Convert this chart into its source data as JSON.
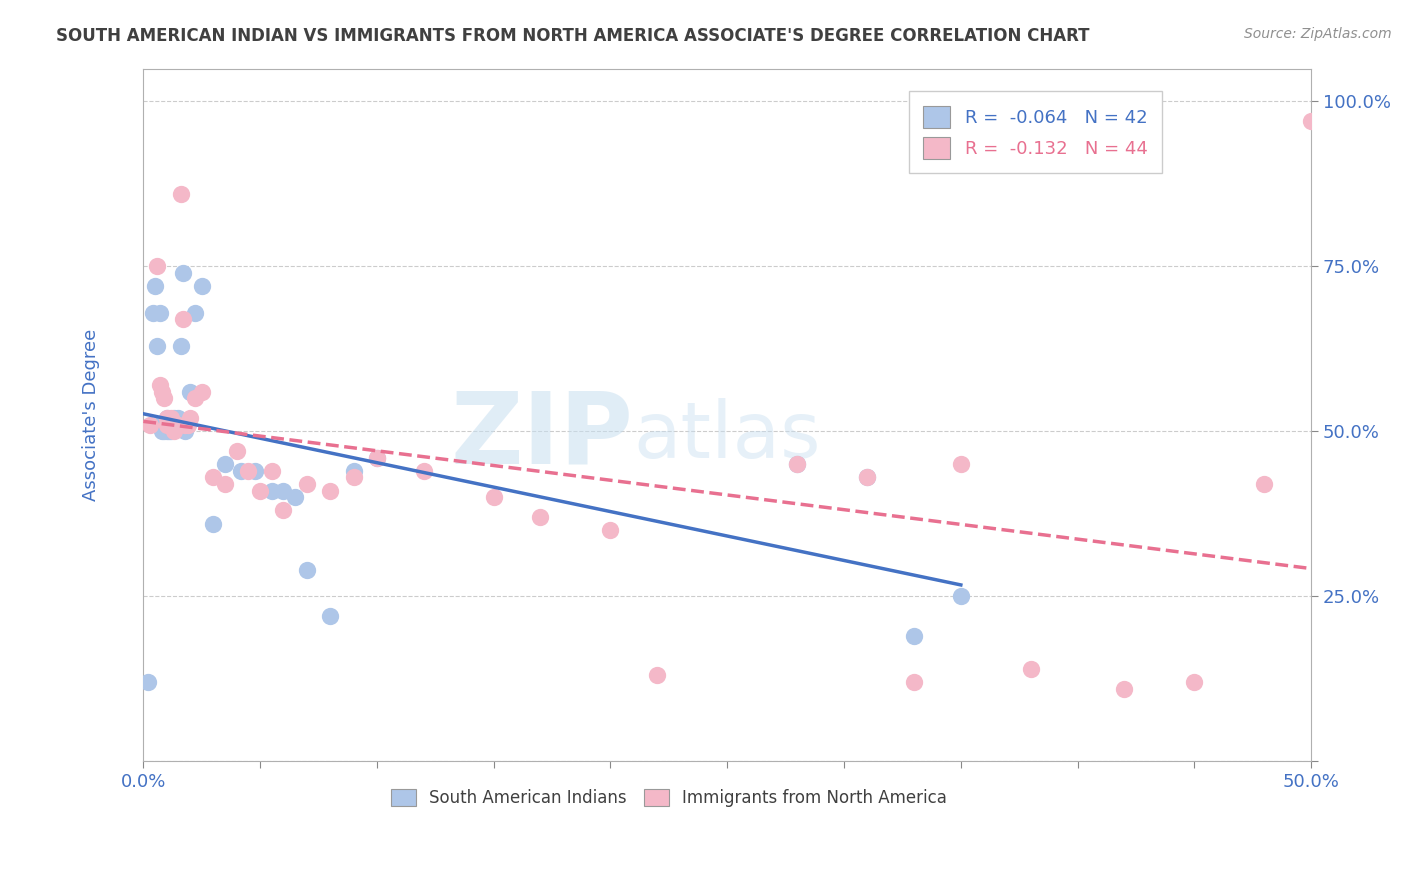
{
  "title": "SOUTH AMERICAN INDIAN VS IMMIGRANTS FROM NORTH AMERICA ASSOCIATE'S DEGREE CORRELATION CHART",
  "source": "Source: ZipAtlas.com",
  "ylabel": "Associate's Degree",
  "xlim": [
    0.0,
    0.5
  ],
  "ylim": [
    0.0,
    1.05
  ],
  "xticks": [
    0.0,
    0.05,
    0.1,
    0.15,
    0.2,
    0.25,
    0.3,
    0.35,
    0.4,
    0.45,
    0.5
  ],
  "yticks": [
    0.0,
    0.25,
    0.5,
    0.75,
    1.0
  ],
  "ytick_labels": [
    "",
    "25.0%",
    "50.0%",
    "75.0%",
    "100.0%"
  ],
  "blue_color": "#aec6e8",
  "pink_color": "#f4b8c8",
  "blue_line_color": "#4472c4",
  "pink_line_color": "#e87090",
  "legend_R_blue": "R =  -0.064",
  "legend_N_blue": "N = 42",
  "legend_R_pink": "R =  -0.132",
  "legend_N_pink": "N = 44",
  "blue_x": [
    0.002,
    0.004,
    0.005,
    0.006,
    0.007,
    0.007,
    0.008,
    0.008,
    0.009,
    0.009,
    0.01,
    0.01,
    0.01,
    0.011,
    0.011,
    0.012,
    0.012,
    0.013,
    0.013,
    0.014,
    0.015,
    0.016,
    0.017,
    0.018,
    0.02,
    0.022,
    0.025,
    0.03,
    0.035,
    0.042,
    0.048,
    0.055,
    0.06,
    0.065,
    0.07,
    0.08,
    0.09,
    0.1,
    0.28,
    0.31,
    0.33,
    0.35
  ],
  "blue_y": [
    0.12,
    0.68,
    0.72,
    0.63,
    0.51,
    0.68,
    0.5,
    0.51,
    0.51,
    0.5,
    0.5,
    0.51,
    0.52,
    0.5,
    0.51,
    0.5,
    0.51,
    0.52,
    0.51,
    0.51,
    0.52,
    0.63,
    0.74,
    0.5,
    0.56,
    0.68,
    0.72,
    0.36,
    0.45,
    0.44,
    0.44,
    0.41,
    0.41,
    0.4,
    0.29,
    0.22,
    0.44,
    0.46,
    0.45,
    0.43,
    0.19,
    0.25
  ],
  "pink_x": [
    0.003,
    0.006,
    0.007,
    0.008,
    0.009,
    0.01,
    0.01,
    0.011,
    0.012,
    0.013,
    0.014,
    0.015,
    0.016,
    0.017,
    0.018,
    0.019,
    0.02,
    0.022,
    0.025,
    0.03,
    0.035,
    0.04,
    0.045,
    0.05,
    0.055,
    0.06,
    0.07,
    0.08,
    0.09,
    0.1,
    0.12,
    0.15,
    0.17,
    0.2,
    0.22,
    0.28,
    0.31,
    0.33,
    0.35,
    0.38,
    0.42,
    0.45,
    0.48,
    0.5
  ],
  "pink_y": [
    0.51,
    0.75,
    0.57,
    0.56,
    0.55,
    0.51,
    0.52,
    0.51,
    0.52,
    0.5,
    0.51,
    0.51,
    0.86,
    0.67,
    0.51,
    0.51,
    0.52,
    0.55,
    0.56,
    0.43,
    0.42,
    0.47,
    0.44,
    0.41,
    0.44,
    0.38,
    0.42,
    0.41,
    0.43,
    0.46,
    0.44,
    0.4,
    0.37,
    0.35,
    0.13,
    0.45,
    0.43,
    0.12,
    0.45,
    0.14,
    0.11,
    0.12,
    0.42,
    0.97
  ],
  "grid_color": "#cccccc",
  "background_color": "#ffffff",
  "title_color": "#404040",
  "source_color": "#909090",
  "axis_label_color": "#4472c4",
  "tick_color": "#4472c4"
}
